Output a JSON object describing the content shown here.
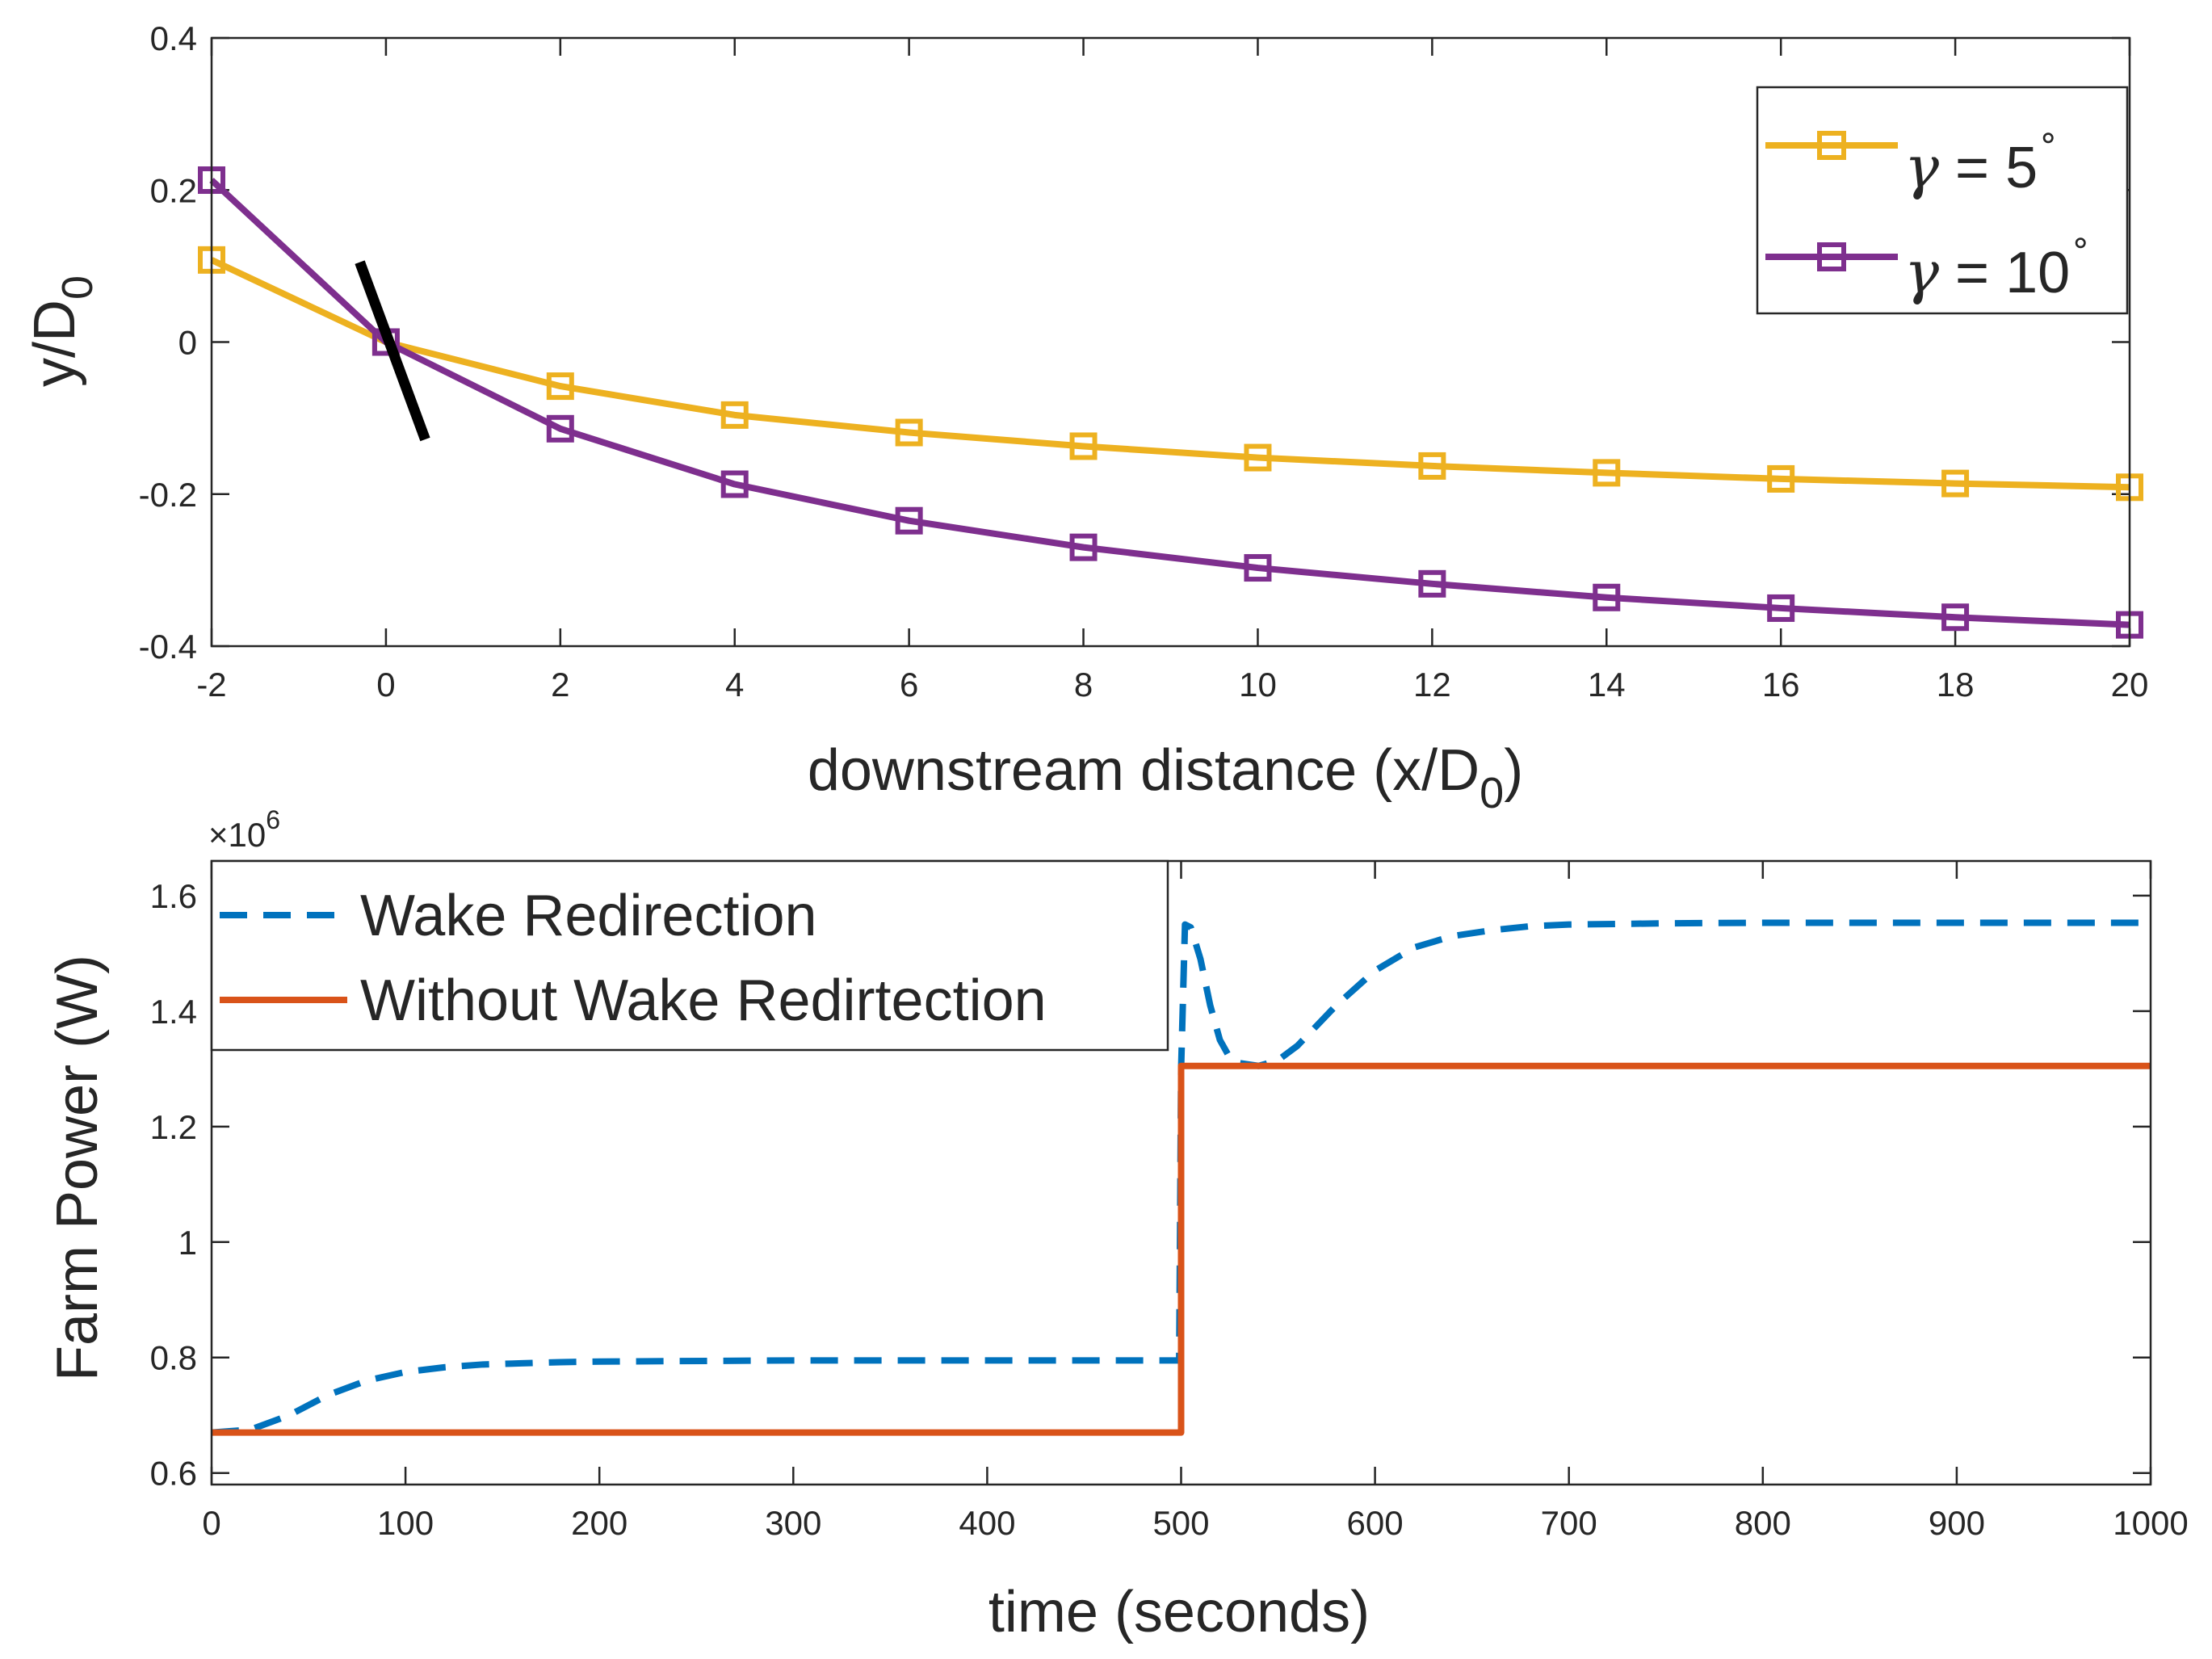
{
  "chart_data": [
    {
      "type": "line",
      "title": "",
      "xlabel": "downstream distance (x/D",
      "xlabel_sub": "0",
      "xlabel_tail": ")",
      "ylabel": "y/D",
      "ylabel_sub": "0",
      "xlim": [
        -2,
        20
      ],
      "ylim": [
        -0.4,
        0.4
      ],
      "xticks": [
        "-2",
        "0",
        "2",
        "4",
        "6",
        "8",
        "10",
        "12",
        "14",
        "16",
        "18",
        "20"
      ],
      "yticks": [
        "-0.4",
        "-0.2",
        "0",
        "0.2",
        "0.4"
      ],
      "x": [
        -2,
        0,
        2,
        4,
        6,
        8,
        10,
        12,
        14,
        16,
        18,
        20
      ],
      "series": [
        {
          "name": "γ = 5°",
          "legend_symbol": "γ",
          "legend_text": " = 5",
          "legend_degree": "∘",
          "color": "#EDB120",
          "marker": "square",
          "values": [
            0.108,
            0,
            -0.058,
            -0.096,
            -0.119,
            -0.137,
            -0.152,
            -0.163,
            -0.172,
            -0.18,
            -0.186,
            -0.191
          ]
        },
        {
          "name": "γ = 10°",
          "legend_symbol": "γ",
          "legend_text": " = 10",
          "legend_degree": "∘",
          "color": "#7E2F8E",
          "marker": "square",
          "values": [
            0.213,
            0,
            -0.114,
            -0.187,
            -0.235,
            -0.27,
            -0.297,
            -0.318,
            -0.336,
            -0.35,
            -0.362,
            -0.372
          ]
        }
      ],
      "annotation": {
        "type": "turbine-blade-line",
        "color": "#000000",
        "x": [
          -0.3,
          0.45
        ],
        "y": [
          0.105,
          -0.128
        ]
      },
      "legend_position": "top-right"
    },
    {
      "type": "line",
      "title": "",
      "xlabel": "time (seconds)",
      "ylabel": "Farm Power (W)",
      "exponent_label": "×10",
      "exponent_power": "6",
      "xlim": [
        0,
        1000
      ],
      "ylim": [
        0.58,
        1.66
      ],
      "xticks": [
        "0",
        "100",
        "200",
        "300",
        "400",
        "500",
        "600",
        "700",
        "800",
        "900",
        "1000"
      ],
      "yticks": [
        "0.6",
        "0.8",
        "1",
        "1.2",
        "1.4",
        "1.6"
      ],
      "series": [
        {
          "name": "Wake Redirection",
          "color": "#0072BD",
          "style": "dashed",
          "x": [
            0,
            20,
            40,
            60,
            80,
            100,
            120,
            140,
            160,
            180,
            200,
            300,
            499,
            500,
            502,
            505,
            510,
            515,
            520,
            525,
            530,
            540,
            550,
            560,
            570,
            580,
            590,
            600,
            620,
            640,
            660,
            680,
            700,
            750,
            800,
            900,
            1000
          ],
          "values": [
            0.67,
            0.675,
            0.7,
            0.735,
            0.76,
            0.775,
            0.783,
            0.788,
            0.79,
            0.792,
            0.793,
            0.795,
            0.795,
            1.3,
            1.55,
            1.545,
            1.49,
            1.41,
            1.35,
            1.32,
            1.31,
            1.305,
            1.315,
            1.34,
            1.375,
            1.41,
            1.44,
            1.47,
            1.51,
            1.53,
            1.54,
            1.547,
            1.55,
            1.552,
            1.553,
            1.553,
            1.553
          ]
        },
        {
          "name": "Without Wake Redirtection",
          "color": "#D95319",
          "style": "solid",
          "x": [
            0,
            500,
            500,
            1000
          ],
          "values": [
            0.67,
            0.67,
            1.305,
            1.305
          ]
        }
      ],
      "legend_position": "top-left"
    }
  ]
}
